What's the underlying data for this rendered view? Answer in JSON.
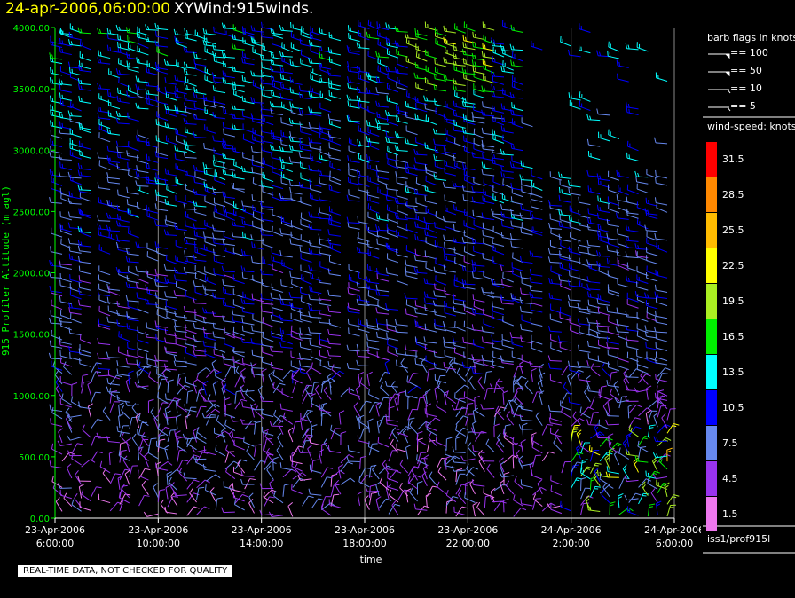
{
  "title": {
    "date": "24-apr-2006,06:00:00",
    "name": "XYWind:915winds."
  },
  "note": "REAL-TIME DATA, NOT CHECKED FOR QUALITY",
  "source": "iss1/prof915l",
  "legend": {
    "barb_title": "barb flags in knots",
    "barbs": [
      {
        "label": "== 100",
        "knots": 100
      },
      {
        "label": "== 50",
        "knots": 50
      },
      {
        "label": "== 10",
        "knots": 10
      },
      {
        "label": "== 5",
        "knots": 5
      }
    ],
    "speed_title": "wind-speed: knots",
    "colorbar": [
      {
        "label": "31.5",
        "color": "#ff0000"
      },
      {
        "label": "28.5",
        "color": "#ff8800"
      },
      {
        "label": "25.5",
        "color": "#ffbb00"
      },
      {
        "label": "22.5",
        "color": "#ffff00"
      },
      {
        "label": "19.5",
        "color": "#aaee22"
      },
      {
        "label": "16.5",
        "color": "#00ee00"
      },
      {
        "label": "13.5",
        "color": "#00ffff"
      },
      {
        "label": "10.5",
        "color": "#0000ff"
      },
      {
        "label": "7.5",
        "color": "#6688ee"
      },
      {
        "label": "4.5",
        "color": "#9933ee"
      },
      {
        "label": "1.5",
        "color": "#ee77ee"
      }
    ]
  },
  "chart_data": {
    "type": "wind-barb",
    "xlabel": "time",
    "ylabel": "915 Profiler Altitude (m agl)",
    "ylim": [
      0,
      4000
    ],
    "x_range": [
      "2006-04-23 06:00",
      "2006-04-24 06:00"
    ],
    "x_ticks": [
      {
        "date": "23-Apr-2006",
        "time": "6:00:00"
      },
      {
        "date": "23-Apr-2006",
        "time": "10:00:00"
      },
      {
        "date": "23-Apr-2006",
        "time": "14:00:00"
      },
      {
        "date": "23-Apr-2006",
        "time": "18:00:00"
      },
      {
        "date": "23-Apr-2006",
        "time": "22:00:00"
      },
      {
        "date": "24-Apr-2006",
        "time": "2:00:00"
      },
      {
        "date": "24-Apr-2006",
        "time": "6:00:00"
      }
    ],
    "y_ticks": [
      "0.00",
      "500.00",
      "1000.00",
      "1500.00",
      "2000.00",
      "2500.00",
      "3000.00",
      "3500.00",
      "4000.00"
    ],
    "grid_vertical": true
  }
}
